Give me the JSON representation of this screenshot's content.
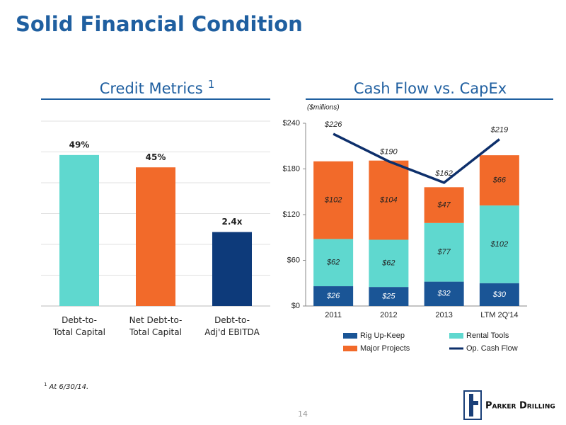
{
  "slide": {
    "title": "Solid Financial Condition",
    "footnote_marker": "1",
    "footnote": "At 6/30/14.",
    "page_number": "14",
    "logo": "Parker Drilling"
  },
  "chart_data": [
    {
      "type": "bar",
      "title": "Credit Metrics",
      "title_superscript": "1",
      "categories": [
        "Debt-to-\nTotal Capital",
        "Net Debt-to-\nTotal Capital",
        "Debt-to-\nAdj'd EBITDA"
      ],
      "values": [
        49,
        45,
        2.4
      ],
      "value_labels": [
        "49%",
        "45%",
        "2.4x"
      ],
      "colors": [
        "#5fd8cf",
        "#f26a2a",
        "#0d3a7a"
      ],
      "axes": [
        "y",
        "y",
        "y2"
      ],
      "ylim": [
        0,
        60
      ],
      "yticks": [
        0,
        10,
        20,
        30,
        40,
        50,
        60
      ],
      "y2lim": [
        0,
        6
      ],
      "grid": true
    },
    {
      "type": "bar",
      "stacked": true,
      "title": "Cash Flow vs. CapEx",
      "subtitle": "($millions)",
      "categories": [
        "2011",
        "2012",
        "2013",
        "LTM 2Q'14"
      ],
      "ylim": [
        0,
        240
      ],
      "yticks": [
        {
          "value": 0,
          "label": "$0"
        },
        {
          "value": 60,
          "label": "$60"
        },
        {
          "value": 120,
          "label": "$120"
        },
        {
          "value": 180,
          "label": "$180"
        },
        {
          "value": 240,
          "label": "$240"
        }
      ],
      "grid": false,
      "legend": "bottom",
      "series": [
        {
          "name": "Rig Up-Keep",
          "color": "#1a5596",
          "values": [
            26,
            25,
            32,
            30
          ],
          "value_labels": [
            "$26",
            "$25",
            "$32",
            "$30"
          ]
        },
        {
          "name": "Rental Tools",
          "color": "#5fd8cf",
          "values": [
            62,
            62,
            77,
            102
          ],
          "value_labels": [
            "$62",
            "$62",
            "$77",
            "$102"
          ]
        },
        {
          "name": "Major Projects",
          "color": "#f26a2a",
          "values": [
            102,
            104,
            47,
            66
          ],
          "value_labels": [
            "$102",
            "$104",
            "$47",
            "$66"
          ]
        },
        {
          "name": "Op. Cash Flow",
          "type": "line",
          "color": "#0d2f6b",
          "values": [
            226,
            190,
            162,
            219
          ],
          "value_labels": [
            "$226",
            "$190",
            "$162",
            "$219"
          ]
        }
      ]
    }
  ]
}
